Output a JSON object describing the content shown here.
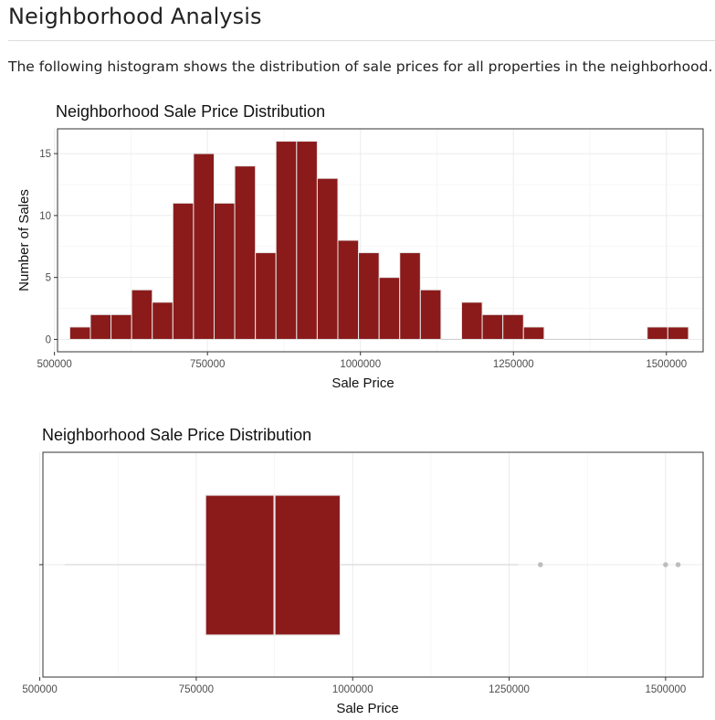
{
  "page": {
    "title": "Neighborhood Analysis",
    "intro": "The following histogram shows the distribution of sale prices for all properties in the neighborhood."
  },
  "colors": {
    "fill": "#8b1a1a",
    "edge": "#e6e6e6",
    "grid": "#ebebeb",
    "panel_border": "#333333",
    "outlier": "#bdbdbd",
    "whisker": "#d9d9d9"
  },
  "chart_data": [
    {
      "type": "histogram",
      "title": "Neighborhood Sale Price Distribution",
      "xlabel": "Sale Price",
      "ylabel": "Number of Sales",
      "xlim": [
        505000,
        1560000
      ],
      "ylim": [
        -1,
        17
      ],
      "xticks": [
        500000,
        750000,
        1000000,
        1250000,
        1500000
      ],
      "xtick_labels": [
        "500000",
        "750000",
        "1000000",
        "1250000",
        "1500000"
      ],
      "yticks": [
        0,
        5,
        10,
        15
      ],
      "ytick_labels": [
        "0",
        "5",
        "10",
        "15"
      ],
      "grid": true,
      "bin_start": 525000,
      "bin_width": 33700,
      "counts": [
        1,
        2,
        2,
        4,
        3,
        11,
        15,
        11,
        14,
        7,
        16,
        16,
        13,
        8,
        7,
        5,
        7,
        4,
        0,
        3,
        2,
        2,
        1,
        0,
        0,
        0,
        0,
        0,
        1,
        1
      ]
    },
    {
      "type": "boxplot",
      "title": "Neighborhood Sale Price Distribution",
      "xlabel": "Sale Price",
      "ylabel": "",
      "xlim": [
        505000,
        1560000
      ],
      "xticks": [
        500000,
        750000,
        1000000,
        1250000,
        1500000
      ],
      "xtick_labels": [
        "500000",
        "750000",
        "1000000",
        "1250000",
        "1500000"
      ],
      "grid": true,
      "whisker_low": 540000,
      "q1": 765000,
      "median": 875000,
      "q3": 980000,
      "whisker_high": 1265000,
      "outliers": [
        1300000,
        1500000,
        1520000
      ]
    }
  ]
}
